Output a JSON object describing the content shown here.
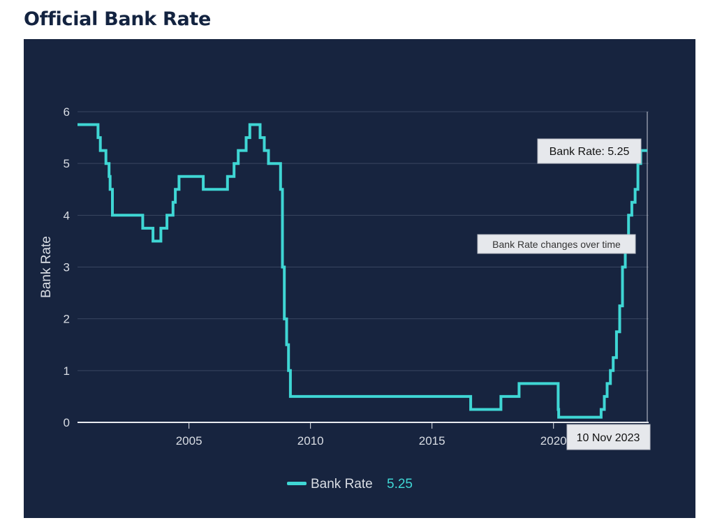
{
  "page": {
    "title": "Official Bank Rate"
  },
  "chart_data": {
    "type": "line",
    "line_shape": "step",
    "title": "",
    "xlabel": "",
    "ylabel": "Bank Rate",
    "xlim": [
      "2000-06-01",
      "2023-12-01"
    ],
    "ylim": [
      0,
      6
    ],
    "xticks": [
      "2005",
      "2010",
      "2015",
      "2020"
    ],
    "yticks": [
      "0",
      "1",
      "2",
      "3",
      "4",
      "5",
      "6"
    ],
    "grid": true,
    "legend": "bottom-center",
    "colors": {
      "background": "#17243f",
      "line": "#3fd6d4",
      "grid": "#3a4661"
    },
    "series": [
      {
        "name": "Bank Rate",
        "legend_value": "5.25",
        "x": [
          "2000-06-01",
          "2001-02-08",
          "2001-04-05",
          "2001-05-10",
          "2001-08-02",
          "2001-09-18",
          "2001-10-04",
          "2001-11-08",
          "2003-02-06",
          "2003-07-10",
          "2003-11-06",
          "2004-02-05",
          "2004-05-06",
          "2004-06-10",
          "2004-08-05",
          "2005-08-04",
          "2006-08-03",
          "2006-11-09",
          "2007-01-11",
          "2007-05-10",
          "2007-07-05",
          "2007-12-06",
          "2008-02-07",
          "2008-04-10",
          "2008-10-08",
          "2008-11-06",
          "2008-12-04",
          "2009-01-08",
          "2009-02-05",
          "2009-03-05",
          "2016-08-04",
          "2017-11-02",
          "2018-08-02",
          "2020-03-11",
          "2020-03-19",
          "2021-12-16",
          "2022-02-03",
          "2022-03-17",
          "2022-05-05",
          "2022-06-16",
          "2022-08-04",
          "2022-09-22",
          "2022-11-03",
          "2022-12-15",
          "2023-02-02",
          "2023-03-23",
          "2023-05-11",
          "2023-06-22",
          "2023-08-03",
          "2023-11-10"
        ],
        "values": [
          5.75,
          5.75,
          5.5,
          5.25,
          5.0,
          4.75,
          4.5,
          4.0,
          3.75,
          3.5,
          3.75,
          4.0,
          4.25,
          4.5,
          4.75,
          4.5,
          4.75,
          5.0,
          5.25,
          5.5,
          5.75,
          5.5,
          5.25,
          5.0,
          4.5,
          3.0,
          2.0,
          1.5,
          1.0,
          0.5,
          0.25,
          0.5,
          0.75,
          0.25,
          0.1,
          0.25,
          0.5,
          0.75,
          1.0,
          1.25,
          1.75,
          2.25,
          3.0,
          3.5,
          4.0,
          4.25,
          4.5,
          5.0,
          5.25,
          5.25
        ]
      }
    ],
    "tooltip": {
      "label": "Bank Rate: 5.25",
      "date": "10 Nov 2023"
    },
    "annotation": "Bank Rate changes over time"
  }
}
